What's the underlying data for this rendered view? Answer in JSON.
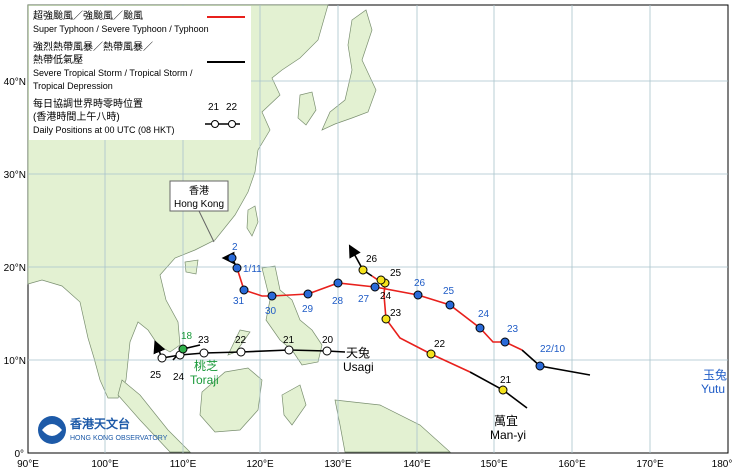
{
  "legend": {
    "typhoon_zh": "超強颱風／強颱風／颱風",
    "typhoon_en": "Super Typhoon / Severe Typhoon / Typhoon",
    "storm_zh_1": "強烈熱帶風暴／熱帶風暴／",
    "storm_zh_2": "熱帶低氣壓",
    "storm_en_1": "Severe Tropical Storm / Tropical Storm /",
    "storm_en_2": "Tropical Depression",
    "daily_zh_1": "每日協調世界時零時位置",
    "daily_zh_2": "(香港時間上午八時)",
    "daily_en": "Daily Positions at 00 UTC (08 HKT)",
    "sample_1": "21",
    "sample_2": "22"
  },
  "x_axis": [
    "90°E",
    "100°E",
    "110°E",
    "120°E",
    "130°E",
    "140°E",
    "150°E",
    "160°E",
    "170°E",
    "180°"
  ],
  "y_axis": [
    "0°",
    "10°N",
    "20°N",
    "30°N",
    "40°N"
  ],
  "hong_kong": {
    "zh": "香港",
    "en": "Hong Kong"
  },
  "logo": {
    "zh": "香港天文台",
    "en": "HONG KONG OBSERVATORY"
  },
  "storms": {
    "yutu": {
      "zh": "玉兔",
      "en": "Yutu",
      "labels": [
        "22/10",
        "23",
        "24",
        "25",
        "26",
        "27",
        "28",
        "29",
        "30",
        "31",
        "1/11",
        "2"
      ]
    },
    "usagi": {
      "zh": "天兔",
      "en": "Usagi",
      "labels": [
        "20",
        "21",
        "22",
        "23",
        "24",
        "25"
      ]
    },
    "toraji": {
      "zh": "桃芝",
      "en": "Toraji",
      "labels": [
        "18"
      ]
    },
    "manyi": {
      "zh": "萬宜",
      "en": "Man-yi",
      "labels": [
        "21",
        "22",
        "23",
        "24",
        "25",
        "26"
      ]
    }
  }
}
